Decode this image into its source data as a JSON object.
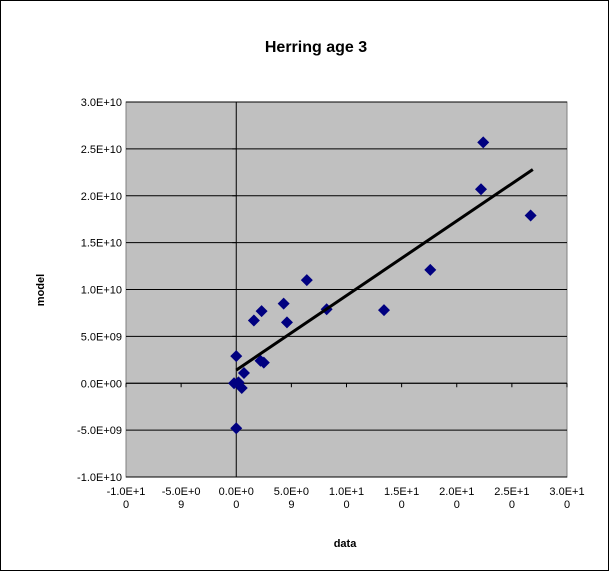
{
  "chart_data": {
    "type": "scatter",
    "title": "Herring age 3",
    "x_label": "data",
    "y_label": "model",
    "color": "#000080",
    "grid": true,
    "x": [
      22400000000,
      22200000000,
      26700000000,
      17600000000,
      6400000000,
      4300000000,
      4600000000,
      8200000000,
      13400000000,
      2300000000,
      1600000000,
      0,
      2200000000,
      2500000000,
      700000000,
      200000000,
      -200000000,
      500000000,
      0
    ],
    "values": [
      25700000000,
      20700000000,
      17900000000,
      12100000000,
      11000000000,
      8500000000,
      6500000000,
      7900000000,
      7800000000,
      7700000000,
      6700000000,
      2900000000,
      2400000000,
      2200000000,
      1100000000,
      100000000,
      0,
      -500000000,
      -4800000000
    ],
    "trendline": {
      "x": [
        0,
        26900000000
      ],
      "y": [
        1400000000,
        22800000000
      ],
      "color": "#000000"
    },
    "xlim": [
      -10000000000,
      30000000000
    ],
    "ylim": [
      -10000000000,
      30000000000
    ],
    "xticks": [
      {
        "value": -10000000000,
        "label": "-1.0E+10"
      },
      {
        "value": -5000000000,
        "label": "-5.0E+09"
      },
      {
        "value": 0,
        "label": "0.0E+00"
      },
      {
        "value": 5000000000,
        "label": "5.0E+09"
      },
      {
        "value": 10000000000,
        "label": "1.0E+10"
      },
      {
        "value": 15000000000,
        "label": "1.5E+10"
      },
      {
        "value": 20000000000,
        "label": "2.0E+10"
      },
      {
        "value": 25000000000,
        "label": "2.5E+10"
      },
      {
        "value": 30000000000,
        "label": "3.0E+10"
      }
    ],
    "yticks": [
      {
        "value": -10000000000,
        "label": "-1.0E+10"
      },
      {
        "value": -5000000000,
        "label": "-5.0E+09"
      },
      {
        "value": 0,
        "label": "0.0E+00"
      },
      {
        "value": 5000000000,
        "label": "5.0E+09"
      },
      {
        "value": 10000000000,
        "label": "1.0E+10"
      },
      {
        "value": 15000000000,
        "label": "1.5E+10"
      },
      {
        "value": 20000000000,
        "label": "2.0E+10"
      },
      {
        "value": 25000000000,
        "label": "2.5E+10"
      },
      {
        "value": 30000000000,
        "label": "3.0E+10"
      }
    ]
  }
}
